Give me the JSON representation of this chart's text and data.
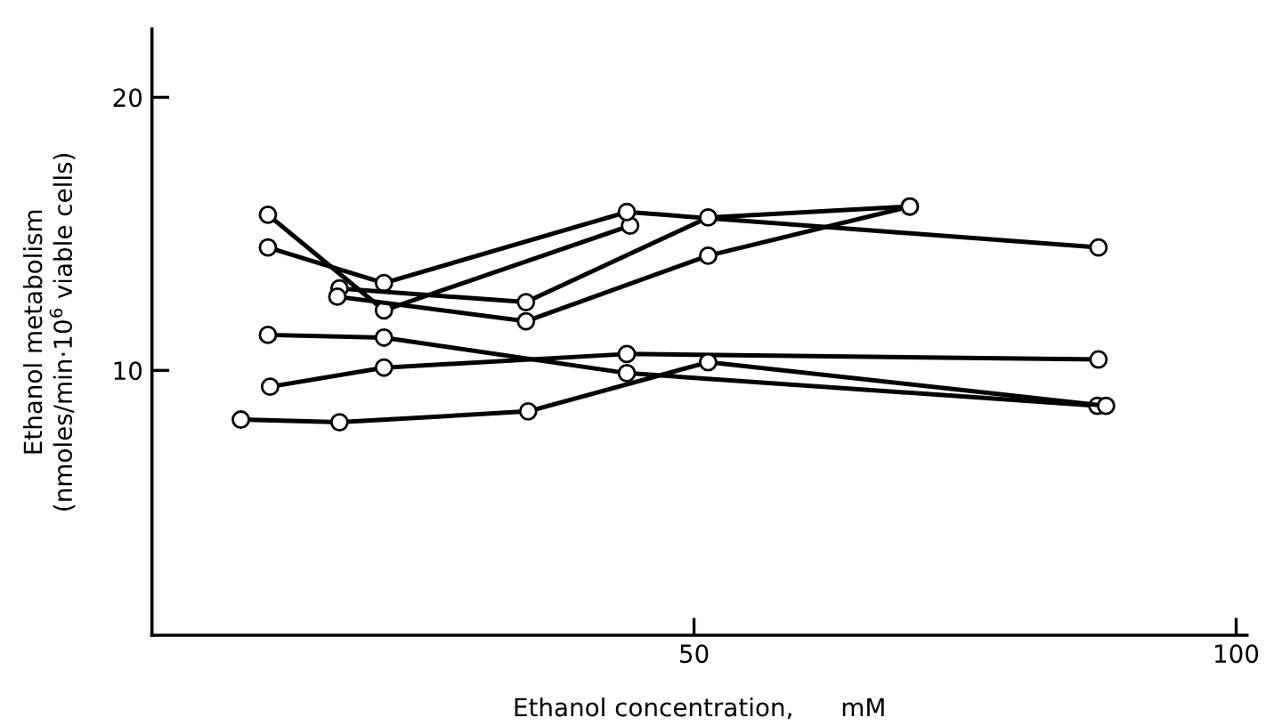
{
  "chart_data": {
    "type": "line",
    "xlabel": "Ethanol concentration,      mM",
    "ylabel": "Ethanol metabolism\n(nmoles/min·10$^{6}$ viable cells)",
    "xlim": [
      0,
      101
    ],
    "ylim": [
      0.3,
      22.5
    ],
    "xticks": [
      50,
      100
    ],
    "yticks": [
      10,
      20
    ],
    "grid": false,
    "legend": false,
    "marker": "circle",
    "line_style": "solid",
    "series": [
      {
        "color": "#000000",
        "x": [
          10.7,
          21.4,
          44.1
        ],
        "values": [
          15.7,
          12.2,
          15.3
        ]
      },
      {
        "color": "#000000",
        "x": [
          10.7,
          21.4,
          43.8,
          87.3
        ],
        "values": [
          14.5,
          13.2,
          15.8,
          14.5
        ]
      },
      {
        "color": "#000000",
        "x": [
          17.3,
          34.5,
          51.3,
          69.9
        ],
        "values": [
          13.0,
          12.5,
          15.6,
          16.0
        ]
      },
      {
        "color": "#000000",
        "x": [
          17.1,
          34.5,
          51.3,
          69.9
        ],
        "values": [
          12.7,
          11.8,
          14.2,
          16.0
        ]
      },
      {
        "color": "#000000",
        "x": [
          10.7,
          21.4,
          43.8,
          87.2
        ],
        "values": [
          11.3,
          11.2,
          9.9,
          8.7
        ]
      },
      {
        "color": "#000000",
        "x": [
          10.9,
          21.4,
          43.8,
          87.3
        ],
        "values": [
          9.4,
          10.1,
          10.6,
          10.4
        ]
      },
      {
        "color": "#000000",
        "x": [
          8.2,
          17.3,
          34.7,
          51.3,
          88.0
        ],
        "values": [
          8.2,
          8.1,
          8.5,
          10.3,
          8.7
        ]
      }
    ]
  }
}
